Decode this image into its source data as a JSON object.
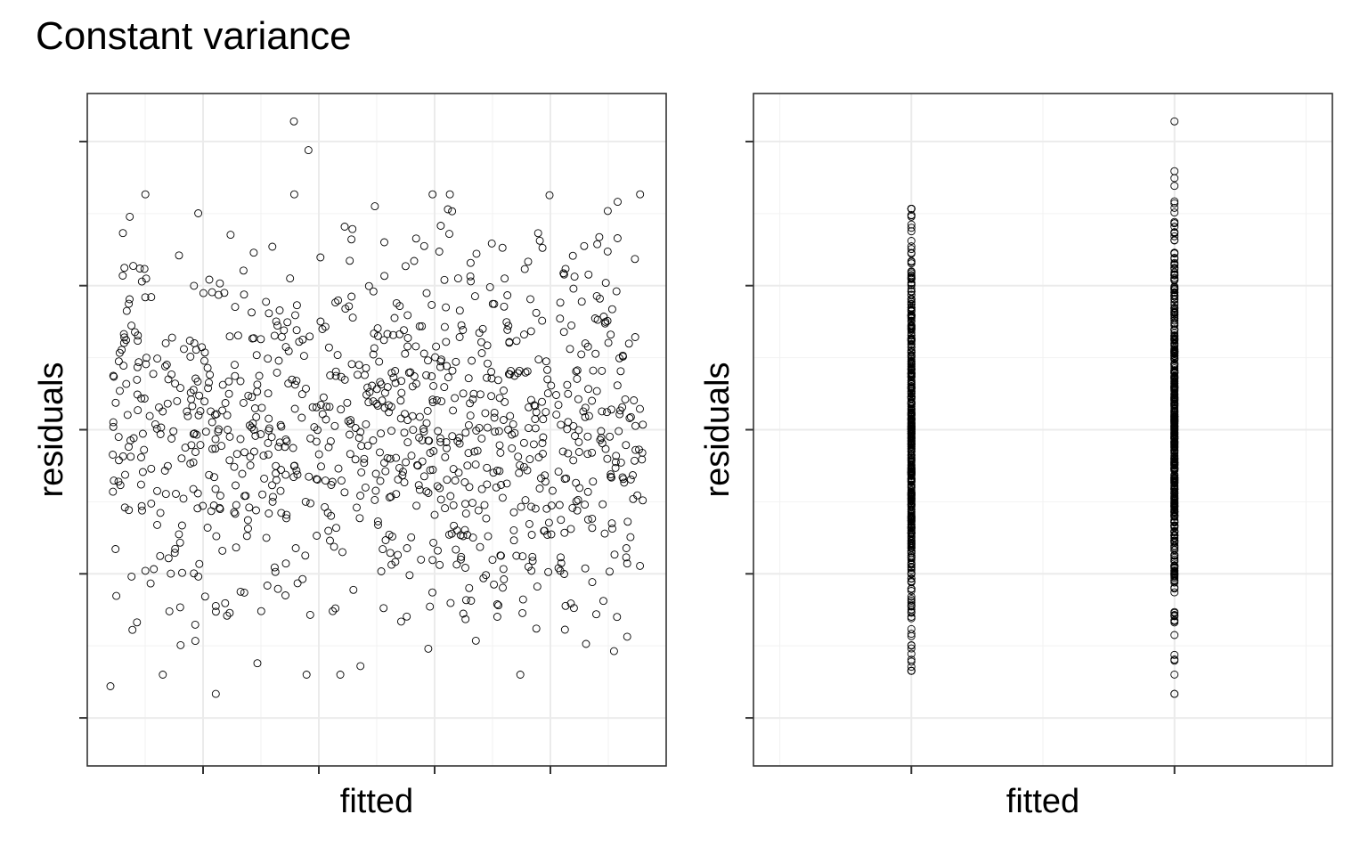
{
  "title": "Constant variance",
  "chart_data": [
    {
      "type": "scatter",
      "xlabel": "fitted",
      "ylabel": "residuals",
      "xlim": [
        0,
        1
      ],
      "ylim": [
        -3.5,
        3.5
      ],
      "x_breaks": [
        0.2,
        0.4,
        0.6,
        0.8
      ],
      "y_breaks": [
        -3,
        -1.5,
        0,
        1.5,
        3
      ],
      "tick_labels_shown": false,
      "grid": true,
      "point_style": "open-circle",
      "n": 1000,
      "x_distribution": "uniform",
      "x_range": [
        0.04,
        0.96
      ],
      "y_distribution": "normal",
      "y_mean": 0,
      "y_sd": 1,
      "notable_points": [
        {
          "x": 0.357,
          "y": 3.21
        },
        {
          "x": 0.382,
          "y": 2.91
        },
        {
          "x": 0.04,
          "y": -2.67
        },
        {
          "x": 0.222,
          "y": -2.75
        }
      ]
    },
    {
      "type": "scatter",
      "xlabel": "fitted",
      "ylabel": "residuals",
      "xlim": [
        -0.6,
        1.6
      ],
      "ylim": [
        -3.5,
        3.5
      ],
      "x_breaks": [
        0,
        1
      ],
      "y_breaks": [
        -3,
        -1.5,
        0,
        1.5,
        3
      ],
      "tick_labels_shown": false,
      "grid": true,
      "point_style": "open-circle",
      "groups": [
        {
          "x": 0,
          "n": 500,
          "y_min": -2.51,
          "y_max": 2.3
        },
        {
          "x": 1,
          "n": 500,
          "y_min": -2.75,
          "y_max": 3.21
        }
      ]
    }
  ]
}
